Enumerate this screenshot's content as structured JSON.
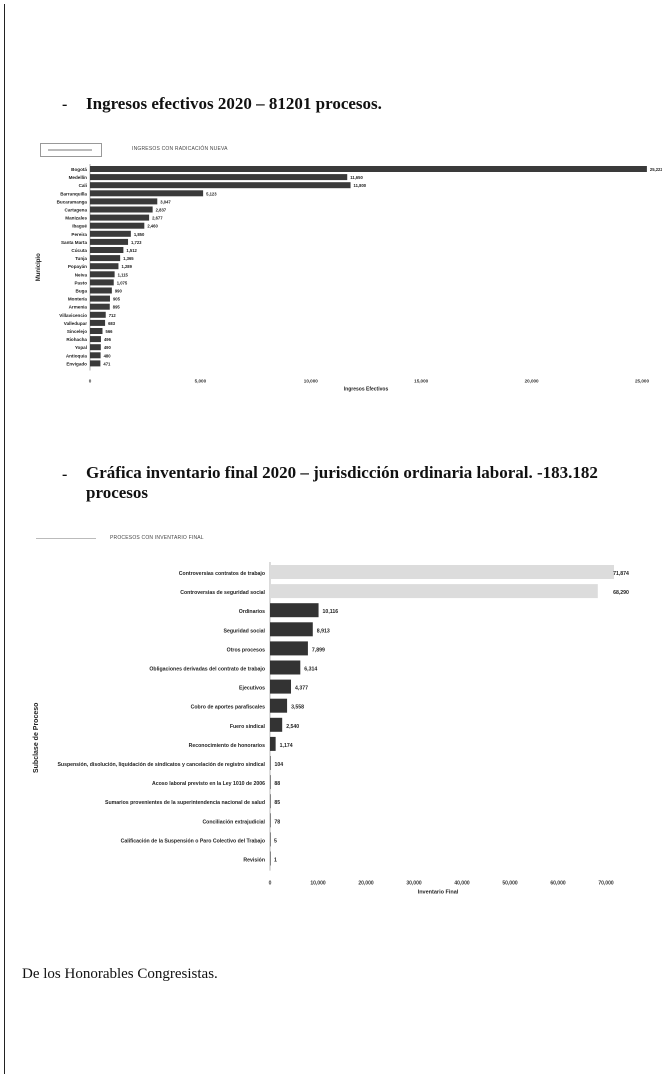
{
  "page": {
    "heading1": "Ingresos efectivos 2020 – 81201 procesos.",
    "heading2_line1": "Gráfica inventario final 2020 – jurisdicción ordinaria laboral.  -183.182",
    "heading2_line2": "procesos",
    "dash": "-",
    "footer": "De los Honorables Congresistas."
  },
  "chart_data": [
    {
      "type": "bar",
      "orientation": "horizontal",
      "legend": "INGRESOS CON RADICACIÓN NUEVA",
      "xlabel": "Ingresos Efectivos",
      "ylabel": "Municipio",
      "xlim": [
        0,
        25000
      ],
      "xticks": [
        "0",
        "5,000",
        "10,000",
        "15,000",
        "20,000",
        "25,000"
      ],
      "categories": [
        "Bogotá",
        "Medellín",
        "Cali",
        "Barranquilla",
        "Bucaramanga",
        "Cartagena",
        "Manizales",
        "Ibagué",
        "Pereira",
        "Santa Marta",
        "Cúcuta",
        "Tunja",
        "Popayán",
        "Neiva",
        "Pasto",
        "Buga",
        "Montería",
        "Armenia",
        "Villavicencio",
        "Valledupar",
        "Sincelejo",
        "Riohacha",
        "Yopal",
        "Antioquia",
        "Envigado"
      ],
      "values": [
        25222,
        11650,
        11800,
        5123,
        3047,
        2837,
        2677,
        2460,
        1850,
        1723,
        1512,
        1365,
        1289,
        1115,
        1075,
        990,
        905,
        895,
        712,
        683,
        566,
        496,
        490,
        480,
        471
      ],
      "value_labels": [
        "25,222",
        "11,650",
        "11,800",
        "5,123",
        "3,047",
        "2,837",
        "2,677",
        "2,460",
        "1,850",
        "1,723",
        "1,512",
        "1,365",
        "1,289",
        "1,115",
        "1,075",
        "990",
        "905",
        "895",
        "712",
        "683",
        "566",
        "496",
        "490",
        "480",
        "471"
      ],
      "bar_color": "#3a3a3a"
    },
    {
      "type": "bar",
      "orientation": "horizontal",
      "legend": "PROCESOS CON INVENTARIO FINAL",
      "xlabel": "Inventario Final",
      "ylabel": "Subclase de Proceso",
      "xlim": [
        0,
        70000
      ],
      "xticks": [
        "0",
        "10,000",
        "20,000",
        "30,000",
        "40,000",
        "50,000",
        "60,000",
        "70,000"
      ],
      "categories": [
        "Controversias contratos de trabajo",
        "Controversias de seguridad social",
        "Ordinarios",
        "Seguridad social",
        "Otros procesos",
        "Obligaciones derivadas del contrato de trabajo",
        "Ejecutivos",
        "Cobro de aportes parafiscales",
        "Fuero sindical",
        "Reconocimiento de honorarios",
        "Suspensión, disolución, liquidación de sindicatos y cancelación de registro sindical",
        "Acoso laboral previsto en la Ley 1010 de 2006",
        "Sumarios provenientes de la superintendencia nacional de salud",
        "Conciliación extrajudicial",
        "Calificación de la Suspensión o Paro Colectivo del Trabajo",
        "Revisión"
      ],
      "values": [
        71874,
        68290,
        10116,
        8913,
        7899,
        6314,
        4377,
        3558,
        2540,
        1174,
        104,
        88,
        85,
        78,
        5,
        1
      ],
      "value_labels": [
        "71,874",
        "68,290",
        "10,116",
        "8,913",
        "7,899",
        "6,314",
        "4,377",
        "3,558",
        "2,540",
        "1,174",
        "104",
        "88",
        "85",
        "78",
        "5",
        "1"
      ],
      "bar_colors": [
        "#dcdcdc",
        "#dcdcdc",
        "#333333",
        "#333333",
        "#333333",
        "#333333",
        "#333333",
        "#333333",
        "#333333",
        "#333333",
        "#333333",
        "#333333",
        "#333333",
        "#333333",
        "#333333",
        "#333333"
      ]
    }
  ]
}
